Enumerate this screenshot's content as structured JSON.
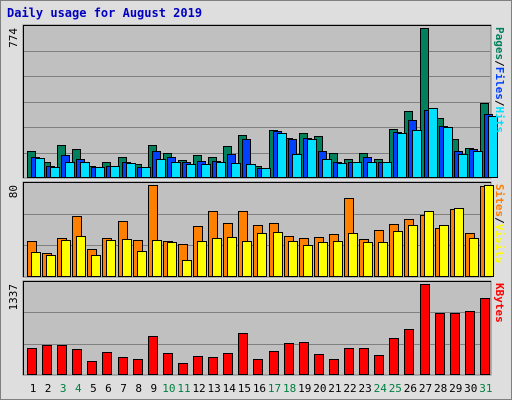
{
  "title": "Daily usage for August 2019",
  "colors": {
    "background": "#dedede",
    "panel": "#c0c0c0",
    "pages": "#00805c",
    "files": "#0040ff",
    "hits": "#00e0ff",
    "sites": "#ff8000",
    "visits": "#ffff00",
    "kbytes": "#ff0000",
    "day_weekday": "#000000",
    "day_weekend": "#008040"
  },
  "chart_data": [
    {
      "type": "bar",
      "title": "Daily usage for August 2019",
      "ymax_label": "774",
      "ylim": [
        0,
        774
      ],
      "grid": true,
      "legend_position": "right",
      "categories": [
        "1",
        "2",
        "3",
        "4",
        "5",
        "6",
        "7",
        "8",
        "9",
        "10",
        "11",
        "12",
        "13",
        "14",
        "15",
        "16",
        "17",
        "18",
        "19",
        "20",
        "21",
        "22",
        "23",
        "24",
        "25",
        "26",
        "27",
        "28",
        "29",
        "30",
        "31"
      ],
      "series": [
        {
          "name": "Pages",
          "color": "#00805c",
          "values": [
            140,
            80,
            170,
            150,
            60,
            85,
            110,
            70,
            170,
            130,
            95,
            120,
            110,
            165,
            220,
            60,
            250,
            205,
            230,
            215,
            130,
            100,
            130,
            100,
            255,
            345,
            774,
            310,
            200,
            155,
            385
          ]
        },
        {
          "name": "Files",
          "color": "#0040ff",
          "values": [
            110,
            60,
            120,
            100,
            55,
            60,
            80,
            55,
            140,
            110,
            80,
            90,
            90,
            125,
            200,
            50,
            245,
            200,
            205,
            140,
            80,
            85,
            110,
            80,
            235,
            300,
            350,
            270,
            140,
            150,
            330
          ]
        },
        {
          "name": "Hits",
          "color": "#00e0ff",
          "values": [
            105,
            55,
            80,
            85,
            55,
            60,
            75,
            55,
            100,
            80,
            70,
            70,
            80,
            75,
            70,
            50,
            230,
            125,
            200,
            100,
            75,
            80,
            80,
            80,
            230,
            250,
            360,
            265,
            125,
            140,
            320
          ]
        }
      ]
    },
    {
      "type": "bar",
      "ymax_label": "80",
      "ylim": [
        0,
        80
      ],
      "grid": true,
      "legend_position": "right",
      "categories": [
        "1",
        "2",
        "3",
        "4",
        "5",
        "6",
        "7",
        "8",
        "9",
        "10",
        "11",
        "12",
        "13",
        "14",
        "15",
        "16",
        "17",
        "18",
        "19",
        "20",
        "21",
        "22",
        "23",
        "24",
        "25",
        "26",
        "27",
        "28",
        "29",
        "30",
        "31"
      ],
      "series": [
        {
          "name": "Sites",
          "color": "#ff8000",
          "values": [
            31,
            21,
            34,
            53,
            24,
            34,
            49,
            32,
            80,
            31,
            29,
            44,
            57,
            47,
            57,
            45,
            47,
            36,
            34,
            35,
            37,
            69,
            33,
            41,
            46,
            50,
            54,
            43,
            59,
            38,
            79
          ]
        },
        {
          "name": "Visits",
          "color": "#ffff00",
          "values": [
            22,
            19,
            32,
            36,
            19,
            32,
            33,
            23,
            32,
            30,
            15,
            31,
            34,
            35,
            31,
            38,
            39,
            31,
            28,
            30,
            31,
            38,
            30,
            30,
            40,
            45,
            57,
            45,
            60,
            34,
            80
          ]
        }
      ]
    },
    {
      "type": "bar",
      "ymax_label": "1337",
      "ylim": [
        0,
        1337
      ],
      "grid": true,
      "legend_position": "right",
      "categories": [
        "1",
        "2",
        "3",
        "4",
        "5",
        "6",
        "7",
        "8",
        "9",
        "10",
        "11",
        "12",
        "13",
        "14",
        "15",
        "16",
        "17",
        "18",
        "19",
        "20",
        "21",
        "22",
        "23",
        "24",
        "25",
        "26",
        "27",
        "28",
        "29",
        "30",
        "31"
      ],
      "series": [
        {
          "name": "KBytes",
          "color": "#ff0000",
          "values": [
            395,
            435,
            435,
            375,
            200,
            340,
            265,
            235,
            570,
            330,
            180,
            285,
            260,
            320,
            610,
            230,
            350,
            475,
            490,
            310,
            240,
            395,
            395,
            300,
            550,
            675,
            1337,
            915,
            915,
            935,
            1130
          ]
        }
      ]
    }
  ],
  "legend": {
    "top": [
      "Pages",
      "/",
      "Files",
      "/",
      "Hits"
    ],
    "middle": [
      "Sites",
      "/",
      "Visits"
    ],
    "bottom": [
      "KBytes"
    ]
  },
  "x_labels": [
    "1",
    "2",
    "3",
    "4",
    "5",
    "6",
    "7",
    "8",
    "9",
    "10",
    "11",
    "12",
    "13",
    "14",
    "15",
    "16",
    "17",
    "18",
    "19",
    "20",
    "21",
    "22",
    "23",
    "24",
    "25",
    "26",
    "27",
    "28",
    "29",
    "30",
    "31"
  ],
  "weekend_days": [
    "3",
    "4",
    "10",
    "11",
    "17",
    "18",
    "24",
    "25",
    "31"
  ]
}
